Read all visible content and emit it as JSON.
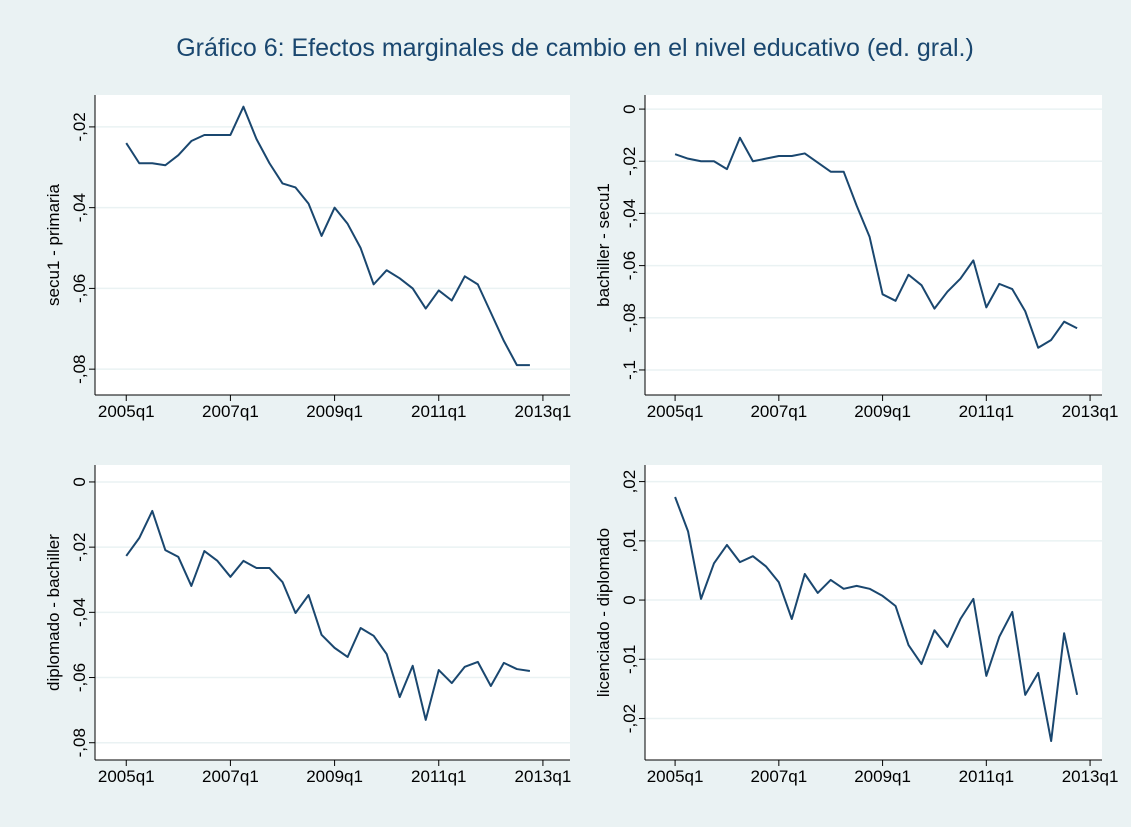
{
  "title": "Gráfico 6: Efectos marginales de cambio en el nivel educativo (ed. gral.)",
  "chart_data": [
    {
      "type": "line",
      "ylabel": "secu1 - primaria",
      "color": "#1a476f",
      "grid": true,
      "x": [
        2005,
        2005.25,
        2005.5,
        2005.75,
        2006,
        2006.25,
        2006.5,
        2006.75,
        2007,
        2007.25,
        2007.5,
        2007.75,
        2008,
        2008.25,
        2008.5,
        2008.75,
        2009,
        2009.25,
        2009.5,
        2009.75,
        2010,
        2010.25,
        2010.5,
        2010.75,
        2011,
        2011.25,
        2011.5,
        2011.75,
        2012,
        2012.25,
        2012.5,
        2012.75
      ],
      "values": [
        -0.024,
        -0.029,
        -0.029,
        -0.0295,
        -0.027,
        -0.0235,
        -0.022,
        -0.022,
        -0.022,
        -0.015,
        -0.023,
        -0.029,
        -0.034,
        -0.035,
        -0.039,
        -0.047,
        -0.04,
        -0.044,
        -0.05,
        -0.059,
        -0.0555,
        -0.0575,
        -0.06,
        -0.065,
        -0.0605,
        -0.063,
        -0.057,
        -0.059,
        -0.066,
        -0.073,
        -0.079,
        -0.079
      ],
      "xlim": [
        2004.4,
        2013.52
      ],
      "ylim": [
        -0.0864,
        -0.0121
      ],
      "xticks": [
        {
          "value": 2005,
          "label": "2005q1"
        },
        {
          "value": 2007,
          "label": "2007q1"
        },
        {
          "value": 2009,
          "label": "2009q1"
        },
        {
          "value": 2011,
          "label": "2011q1"
        },
        {
          "value": 2013,
          "label": "2013q1"
        }
      ],
      "yticks": [
        {
          "value": -0.02,
          "label": "-,02"
        },
        {
          "value": -0.04,
          "label": "-,04"
        },
        {
          "value": -0.06,
          "label": "-,06"
        },
        {
          "value": -0.08,
          "label": "-,08"
        }
      ]
    },
    {
      "type": "line",
      "ylabel": "bachiller - secu1",
      "color": "#1a476f",
      "grid": true,
      "x": [
        2005,
        2005.25,
        2005.5,
        2005.75,
        2006,
        2006.25,
        2006.5,
        2006.75,
        2007,
        2007.25,
        2007.5,
        2007.75,
        2008,
        2008.25,
        2008.5,
        2008.75,
        2009,
        2009.25,
        2009.5,
        2009.75,
        2010,
        2010.25,
        2010.5,
        2010.75,
        2011,
        2011.25,
        2011.5,
        2011.75,
        2012,
        2012.25,
        2012.5,
        2012.75
      ],
      "values": [
        -0.0173,
        -0.019,
        -0.02,
        -0.02,
        -0.023,
        -0.011,
        -0.02,
        -0.019,
        -0.018,
        -0.018,
        -0.017,
        -0.0205,
        -0.024,
        -0.024,
        -0.037,
        -0.049,
        -0.071,
        -0.0735,
        -0.0635,
        -0.0675,
        -0.0765,
        -0.07,
        -0.065,
        -0.058,
        -0.076,
        -0.067,
        -0.069,
        -0.0775,
        -0.0915,
        -0.0885,
        -0.0815,
        -0.084
      ],
      "xlim": [
        2004.42,
        2013.23
      ],
      "ylim": [
        -0.1096,
        0.0054
      ],
      "xticks": [
        {
          "value": 2005,
          "label": "2005q1"
        },
        {
          "value": 2007,
          "label": "2007q1"
        },
        {
          "value": 2009,
          "label": "2009q1"
        },
        {
          "value": 2011,
          "label": "2011q1"
        },
        {
          "value": 2013,
          "label": "2013q1"
        }
      ],
      "yticks": [
        0,
        {
          "value": -0.02,
          "label": "-,02"
        },
        {
          "value": -0.04,
          "label": "-,04"
        },
        {
          "value": -0.06,
          "label": "-,06"
        },
        {
          "value": -0.08,
          "label": "-,08"
        },
        {
          "value": -0.1,
          "label": "-,1"
        }
      ]
    },
    {
      "type": "line",
      "ylabel": "diplomado - bachiller",
      "color": "#1a476f",
      "grid": true,
      "x": [
        2005,
        2005.25,
        2005.5,
        2005.75,
        2006,
        2006.25,
        2006.5,
        2006.75,
        2007,
        2007.25,
        2007.5,
        2007.75,
        2008,
        2008.25,
        2008.5,
        2008.75,
        2009,
        2009.25,
        2009.5,
        2009.75,
        2010,
        2010.25,
        2010.5,
        2010.75,
        2011,
        2011.25,
        2011.5,
        2011.75,
        2012,
        2012.25,
        2012.5,
        2012.75
      ],
      "values": [
        -0.0227,
        -0.0172,
        -0.0089,
        -0.0209,
        -0.023,
        -0.0319,
        -0.0212,
        -0.0242,
        -0.0291,
        -0.0242,
        -0.0264,
        -0.0264,
        -0.0307,
        -0.0402,
        -0.0347,
        -0.0469,
        -0.0509,
        -0.0537,
        -0.0448,
        -0.0472,
        -0.0528,
        -0.066,
        -0.0564,
        -0.073,
        -0.0577,
        -0.0617,
        -0.0567,
        -0.0552,
        -0.0626,
        -0.0555,
        -0.0574,
        -0.058
      ],
      "xlim": [
        2004.4,
        2013.52
      ],
      "ylim": [
        -0.0853,
        0.0052
      ],
      "xticks": [
        {
          "value": 2005,
          "label": "2005q1"
        },
        {
          "value": 2007,
          "label": "2007q1"
        },
        {
          "value": 2009,
          "label": "2009q1"
        },
        {
          "value": 2011,
          "label": "2011q1"
        },
        {
          "value": 2013,
          "label": "2013q1"
        }
      ],
      "yticks": [
        0,
        {
          "value": -0.02,
          "label": "-,02"
        },
        {
          "value": -0.04,
          "label": "-,04"
        },
        {
          "value": -0.06,
          "label": "-,06"
        },
        {
          "value": -0.08,
          "label": "-,08"
        }
      ]
    },
    {
      "type": "line",
      "ylabel": "licenciado - diplomado",
      "color": "#1a476f",
      "grid": true,
      "x": [
        2005,
        2005.25,
        2005.5,
        2005.75,
        2006,
        2006.25,
        2006.5,
        2006.75,
        2007,
        2007.25,
        2007.5,
        2007.75,
        2008,
        2008.25,
        2008.5,
        2008.75,
        2009,
        2009.25,
        2009.5,
        2009.75,
        2010,
        2010.25,
        2010.5,
        2010.75,
        2011,
        2011.25,
        2011.5,
        2011.75,
        2012,
        2012.25,
        2012.5,
        2012.75
      ],
      "values": [
        0.0174,
        0.0116,
        0.0002,
        0.0062,
        0.0093,
        0.0064,
        0.0074,
        0.0057,
        0.003,
        -0.0032,
        0.0044,
        0.0012,
        0.0034,
        0.0019,
        0.0024,
        0.0019,
        0.0007,
        -0.001,
        -0.0076,
        -0.0108,
        -0.0051,
        -0.0079,
        -0.0032,
        0.0002,
        -0.0128,
        -0.0062,
        -0.002,
        -0.016,
        -0.0123,
        -0.0238,
        -0.0056,
        -0.016
      ],
      "xlim": [
        2004.42,
        2013.23
      ],
      "ylim": [
        -0.027,
        0.0228
      ],
      "xticks": [
        {
          "value": 2005,
          "label": "2005q1"
        },
        {
          "value": 2007,
          "label": "2007q1"
        },
        {
          "value": 2009,
          "label": "2009q1"
        },
        {
          "value": 2011,
          "label": "2011q1"
        },
        {
          "value": 2013,
          "label": "2013q1"
        }
      ],
      "yticks": [
        {
          "value": 0.02,
          "label": ",02"
        },
        {
          "value": 0.01,
          "label": ",01"
        },
        0,
        {
          "value": -0.01,
          "label": "-,01"
        },
        {
          "value": -0.02,
          "label": "-,02"
        }
      ]
    }
  ]
}
